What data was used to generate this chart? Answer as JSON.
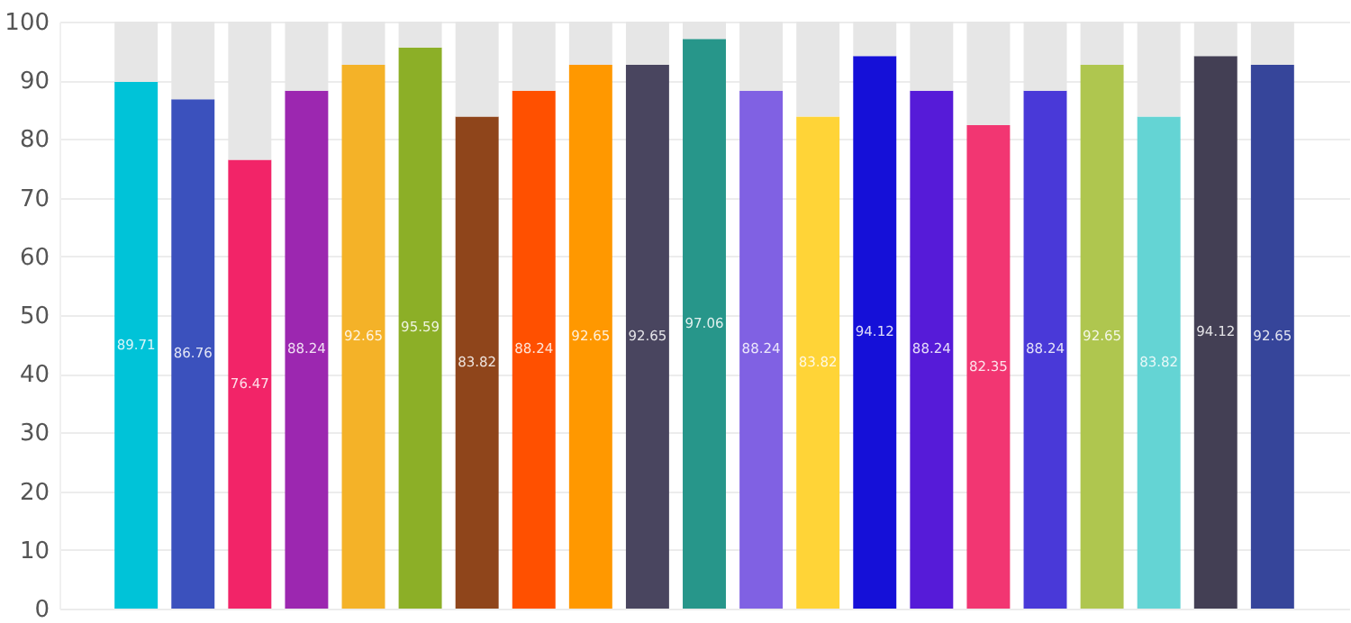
{
  "chart_data": {
    "type": "bar",
    "stacked": true,
    "categories": [
      null,
      null,
      null,
      null,
      null,
      null,
      null,
      null,
      null,
      null,
      null,
      null,
      null,
      null,
      null,
      null,
      null,
      null,
      null,
      null,
      null
    ],
    "series": [
      {
        "values": [
          89.71,
          86.76,
          76.47,
          88.24,
          92.65,
          95.59,
          83.82,
          88.24,
          92.65,
          92.65,
          97.06,
          88.24,
          83.82,
          94.12,
          88.24,
          82.35,
          88.24,
          92.65,
          83.82,
          94.12,
          92.65
        ],
        "value_labels": [
          "89.71",
          "86.76",
          "76.47",
          "88.24",
          "92.65",
          "95.59",
          "83.82",
          "88.24",
          "92.65",
          "92.65",
          "97.06",
          "88.24",
          "83.82",
          "94.12",
          "88.24",
          "82.35",
          "88.24",
          "92.65",
          "83.82",
          "94.12",
          "92.65"
        ],
        "colors": [
          "#00c3d8",
          "#3b51bd",
          "#f22468",
          "#9c27b0",
          "#f4b228",
          "#8caf27",
          "#8f451b",
          "#ff5000",
          "#ff9800",
          "#49455f",
          "#27968a",
          "#8061e3",
          "#ffd437",
          "#1510d8",
          "#561bd8",
          "#f23672",
          "#4939d8",
          "#afc64f",
          "#64d4d4",
          "#433f54",
          "#36459a"
        ]
      },
      {
        "color": "#e6e6e6",
        "values": [
          10.29,
          13.24,
          23.53,
          11.76,
          7.35,
          4.41,
          16.18,
          11.76,
          7.35,
          7.35,
          2.94,
          11.76,
          16.18,
          5.88,
          11.76,
          17.65,
          11.76,
          7.35,
          16.18,
          5.88,
          7.35
        ]
      }
    ],
    "ylim": [
      0,
      100
    ],
    "yticks": [
      0,
      10,
      20,
      30,
      40,
      50,
      60,
      70,
      80,
      90,
      100
    ],
    "grid": "y",
    "tick_labels": "y"
  }
}
